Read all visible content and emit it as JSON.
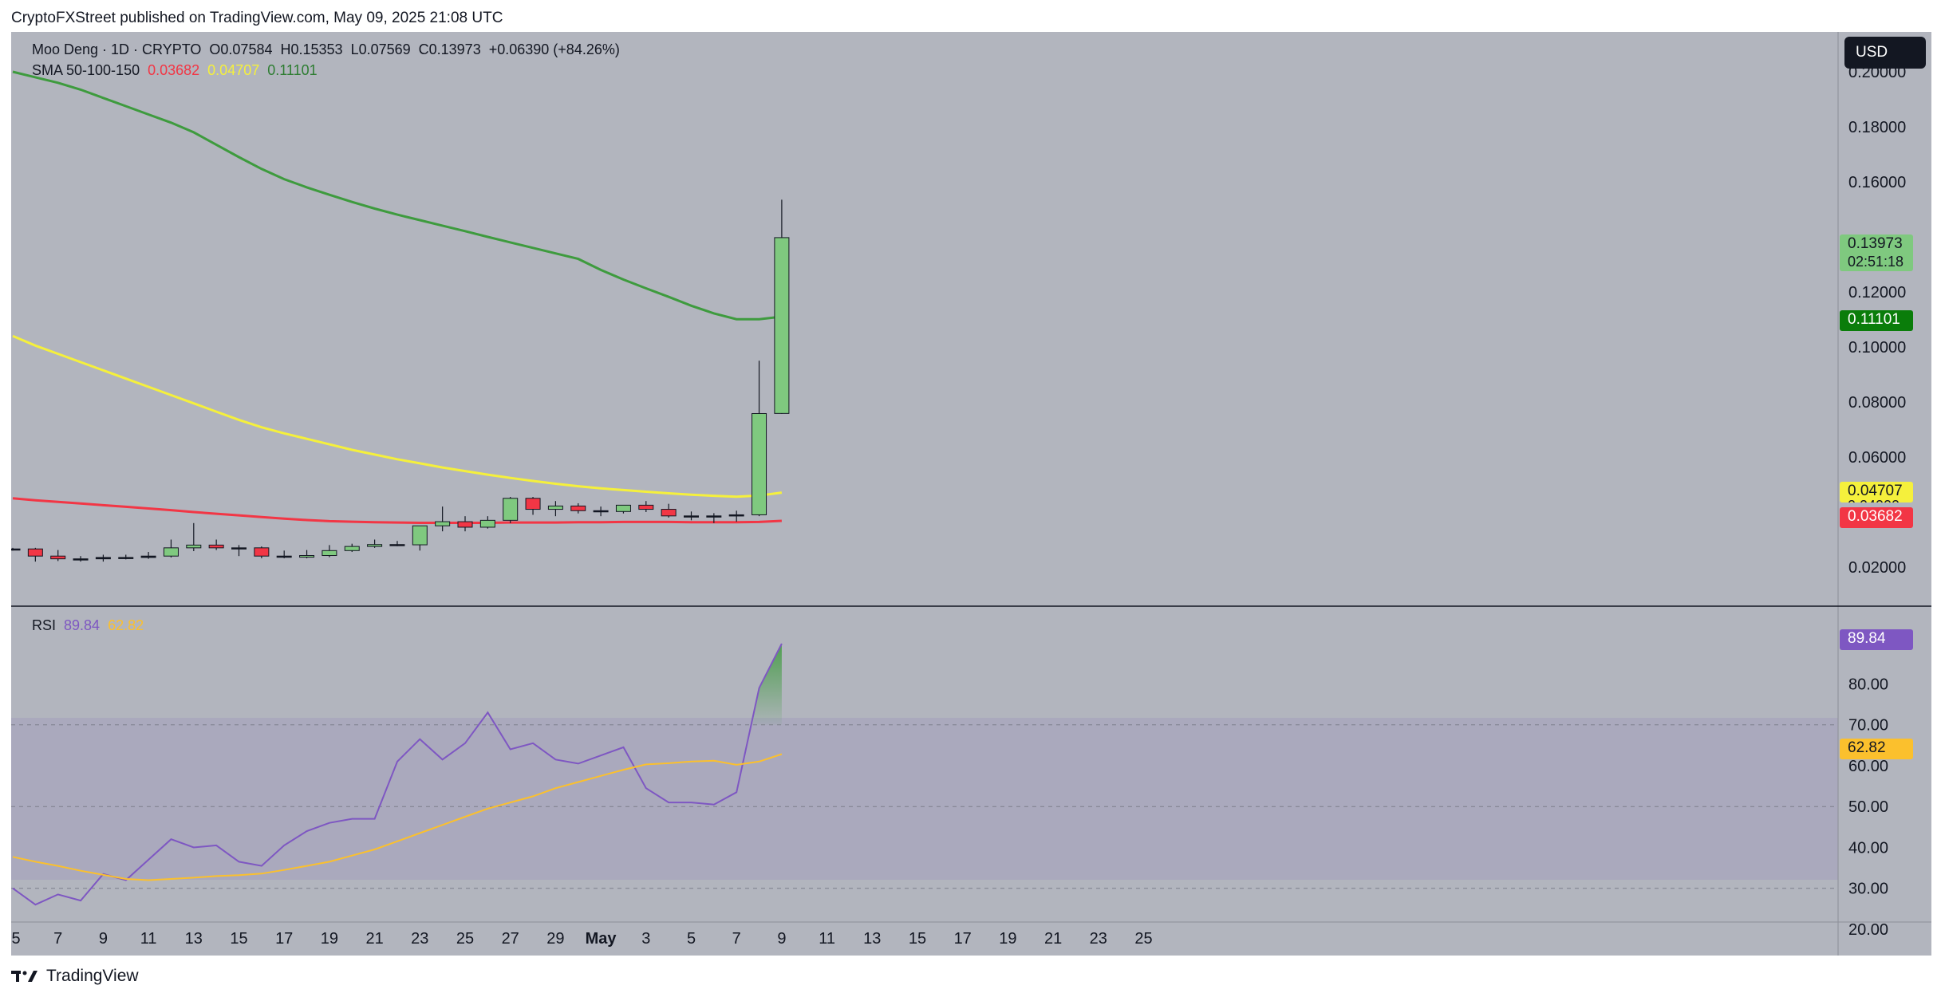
{
  "header": {
    "publisher_line": "CryptoFXStreet published on TradingView.com, May 09, 2025 21:08 UTC"
  },
  "chart": {
    "symbol_line": "Moo Deng · 1D · CRYPTO",
    "ohlc": {
      "o": "O0.07584",
      "h": "H0.15353",
      "l": "L0.07569",
      "c": "C0.13973",
      "chg": "+0.06390 (+84.26%)"
    },
    "sma_label": "SMA 50-100-150",
    "sma_values": {
      "sma50": "0.03682",
      "sma100": "0.04707",
      "sma150": "0.11101"
    },
    "currency_button": "USD",
    "price_axis_ticks": [
      "0.20000",
      "0.18000",
      "0.16000",
      "0.12000",
      "0.10000",
      "0.08000",
      "0.06000",
      "0.02000"
    ],
    "price_labels": {
      "last_price": "0.13973",
      "countdown": "02:51:18",
      "sma150": "0.11101",
      "sma100": "0.04707",
      "sma50": "0.03682",
      "hidden": "0.04000"
    },
    "colors": {
      "background": "#b2b5be",
      "rsi_band": "#aaa9bd",
      "up": "#7fc97f",
      "down": "#f23645",
      "sma50": "#f23645",
      "sma100": "#f5f03c",
      "sma150": "#3e9b3e",
      "rsi": "#7e57c2",
      "rsi_ma": "#fbc02d"
    }
  },
  "rsi": {
    "label": "RSI",
    "value": "89.84",
    "ma_value": "62.82",
    "axis_ticks": [
      "80.00",
      "70.00",
      "60.00",
      "50.00",
      "40.00",
      "30.00",
      "20.00"
    ]
  },
  "time_axis": [
    "5",
    "7",
    "9",
    "11",
    "13",
    "15",
    "17",
    "19",
    "21",
    "23",
    "25",
    "27",
    "29",
    "May",
    "3",
    "5",
    "7",
    "9",
    "11",
    "13",
    "15",
    "17",
    "19",
    "21",
    "23",
    "25"
  ],
  "chart_data": {
    "type": "candlestick",
    "dates": [
      "Apr 5",
      "Apr 6",
      "Apr 7",
      "Apr 8",
      "Apr 9",
      "Apr 10",
      "Apr 11",
      "Apr 12",
      "Apr 13",
      "Apr 14",
      "Apr 15",
      "Apr 16",
      "Apr 17",
      "Apr 18",
      "Apr 19",
      "Apr 20",
      "Apr 21",
      "Apr 22",
      "Apr 23",
      "Apr 24",
      "Apr 25",
      "Apr 26",
      "Apr 27",
      "Apr 28",
      "Apr 29",
      "Apr 30",
      "May 1",
      "May 2",
      "May 3",
      "May 4",
      "May 5",
      "May 6",
      "May 7",
      "May 8",
      "May 9"
    ],
    "open": [
      0.0266,
      0.0266,
      0.024,
      0.023,
      0.023,
      0.0235,
      0.0235,
      0.024,
      0.027,
      0.028,
      0.027,
      0.027,
      0.024,
      0.0236,
      0.0242,
      0.026,
      0.0275,
      0.0282,
      0.0281,
      0.035,
      0.0365,
      0.0345,
      0.037,
      0.045,
      0.041,
      0.0422,
      0.0405,
      0.0402,
      0.0425,
      0.041,
      0.0386,
      0.0384,
      0.0386,
      0.039,
      0.07584
    ],
    "high": [
      0.027,
      0.027,
      0.0262,
      0.024,
      0.0245,
      0.0245,
      0.0255,
      0.03,
      0.036,
      0.03,
      0.028,
      0.0275,
      0.026,
      0.0262,
      0.028,
      0.0285,
      0.03,
      0.0295,
      0.035,
      0.042,
      0.0385,
      0.0385,
      0.0455,
      0.0455,
      0.044,
      0.0432,
      0.042,
      0.0425,
      0.044,
      0.043,
      0.0402,
      0.0396,
      0.0405,
      0.095,
      0.15353
    ],
    "low": [
      0.026,
      0.022,
      0.0222,
      0.022,
      0.022,
      0.0228,
      0.023,
      0.0235,
      0.0258,
      0.0262,
      0.024,
      0.0232,
      0.0232,
      0.0232,
      0.0236,
      0.0255,
      0.027,
      0.0276,
      0.026,
      0.033,
      0.033,
      0.034,
      0.036,
      0.039,
      0.0385,
      0.0395,
      0.0385,
      0.0395,
      0.04,
      0.038,
      0.037,
      0.036,
      0.0365,
      0.0385,
      0.07569
    ],
    "close": [
      0.0266,
      0.024,
      0.023,
      0.023,
      0.0235,
      0.0235,
      0.024,
      0.027,
      0.028,
      0.027,
      0.027,
      0.024,
      0.0236,
      0.0242,
      0.026,
      0.0275,
      0.0282,
      0.0281,
      0.035,
      0.0365,
      0.0345,
      0.037,
      0.045,
      0.041,
      0.0422,
      0.0405,
      0.0402,
      0.0425,
      0.041,
      0.0386,
      0.0384,
      0.0386,
      0.039,
      0.0758,
      0.13973
    ],
    "sma50": {
      "from": 0,
      "values": [
        0.045,
        0.0443,
        0.0437,
        0.0431,
        0.0425,
        0.0419,
        0.0413,
        0.0407,
        0.04,
        0.0394,
        0.0388,
        0.0382,
        0.0376,
        0.0371,
        0.0367,
        0.0365,
        0.0363,
        0.0362,
        0.0361,
        0.0361,
        0.0361,
        0.0361,
        0.0362,
        0.0362,
        0.0362,
        0.0363,
        0.0363,
        0.0364,
        0.0364,
        0.0364,
        0.0363,
        0.0363,
        0.0363,
        0.0364,
        0.03682
      ]
    },
    "sma100": {
      "from": 0,
      "values": [
        0.104,
        0.1005,
        0.0975,
        0.0945,
        0.0915,
        0.0885,
        0.0855,
        0.0825,
        0.0795,
        0.0765,
        0.0735,
        0.0708,
        0.0686,
        0.0666,
        0.0646,
        0.0626,
        0.0609,
        0.0592,
        0.0577,
        0.0562,
        0.0549,
        0.0536,
        0.0524,
        0.0513,
        0.0503,
        0.0494,
        0.0486,
        0.048,
        0.0474,
        0.0468,
        0.0463,
        0.0459,
        0.0456,
        0.046,
        0.04707
      ]
    },
    "sma150": {
      "from": 0,
      "values": [
        0.2,
        0.198,
        0.196,
        0.1935,
        0.1905,
        0.1875,
        0.1845,
        0.1815,
        0.178,
        0.1735,
        0.169,
        0.1647,
        0.161,
        0.158,
        0.1553,
        0.1527,
        0.1503,
        0.1481,
        0.1461,
        0.1441,
        0.1421,
        0.14,
        0.138,
        0.136,
        0.134,
        0.132,
        0.128,
        0.1245,
        0.1213,
        0.1182,
        0.115,
        0.1122,
        0.1101,
        0.1101,
        0.11101
      ]
    },
    "rsi": {
      "from": 0,
      "values": [
        30.0,
        26.0,
        28.5,
        27.0,
        33.5,
        32.0,
        37.0,
        42.0,
        40.0,
        40.5,
        36.5,
        35.5,
        40.5,
        44.0,
        46.0,
        47.0,
        47.0,
        61.0,
        66.5,
        61.5,
        65.5,
        73.0,
        64.0,
        65.5,
        61.5,
        60.5,
        62.5,
        64.5,
        54.5,
        51.0,
        51.0,
        50.5,
        53.5,
        79.0,
        89.84
      ]
    },
    "rsi_ma": {
      "from": 0,
      "values": [
        37.7,
        36.5,
        35.5,
        34.3,
        33.3,
        32.3,
        32.0,
        32.3,
        32.6,
        33.0,
        33.2,
        33.6,
        34.5,
        35.5,
        36.5,
        38.0,
        39.5,
        41.5,
        43.5,
        45.5,
        47.5,
        49.5,
        51.0,
        52.5,
        54.5,
        56.0,
        57.5,
        59.0,
        60.3,
        60.6,
        61.0,
        61.2,
        60.2,
        61.0,
        62.82
      ]
    },
    "price_axis": {
      "min": 0.0,
      "max": 0.2
    },
    "rsi_axis": {
      "min": 20,
      "max": 90
    },
    "rsi_levels": [
      70,
      50,
      30
    ]
  }
}
